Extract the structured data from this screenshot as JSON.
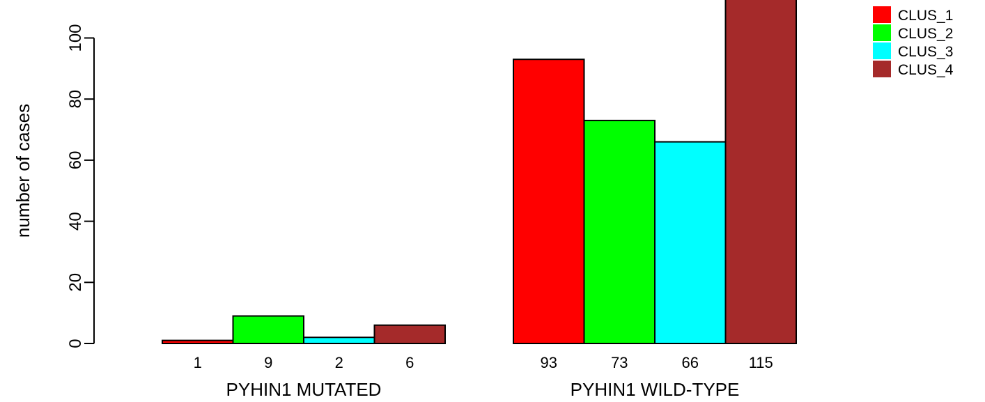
{
  "chart_data": {
    "type": "bar",
    "title": "",
    "ylabel": "number of cases",
    "xlabel": "",
    "ylim": [
      0,
      115
    ],
    "yticks": [
      0,
      20,
      40,
      60,
      80,
      100
    ],
    "grid": false,
    "legend_position": "top-right",
    "groups": [
      "PYHIN1 MUTATED",
      "PYHIN1 WILD-TYPE"
    ],
    "series": [
      {
        "name": "CLUS_1",
        "color": "#ff0000",
        "values": [
          1,
          93
        ]
      },
      {
        "name": "CLUS_2",
        "color": "#00ff00",
        "values": [
          9,
          73
        ]
      },
      {
        "name": "CLUS_3",
        "color": "#00ffff",
        "values": [
          2,
          66
        ]
      },
      {
        "name": "CLUS_4",
        "color": "#a52a2a",
        "values": [
          6,
          115
        ]
      }
    ]
  }
}
